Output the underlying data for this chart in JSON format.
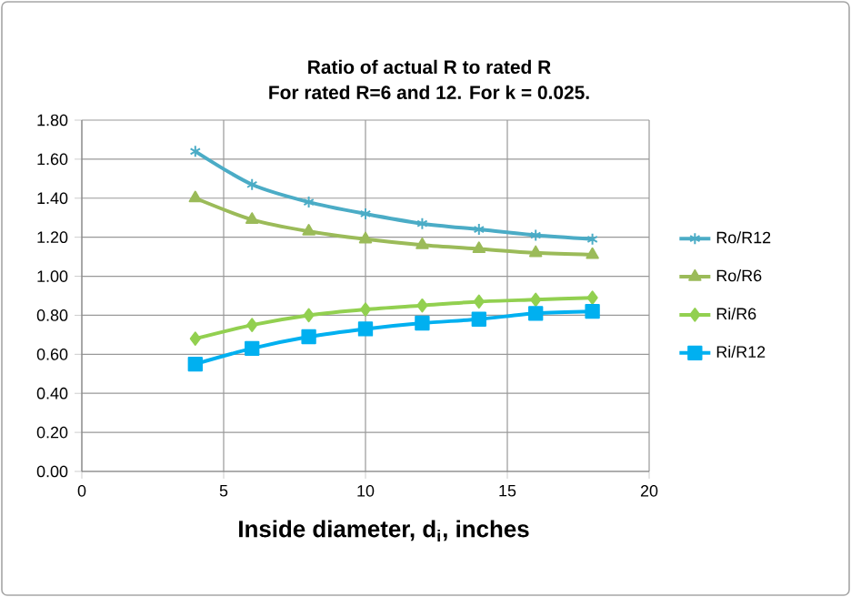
{
  "chart_data": {
    "type": "line",
    "title": "Ratio of actual R to rated R",
    "subtitle": "For rated R=6 and 12. For k = 0.025.",
    "xlabel": "Inside diameter, d$_{i}$, inches",
    "x": [
      4,
      6,
      8,
      10,
      12,
      14,
      16,
      18
    ],
    "series": [
      {
        "name": "Ro/R12",
        "color": "#4bacc6",
        "marker": "cross",
        "values": [
          1.64,
          1.47,
          1.38,
          1.32,
          1.27,
          1.24,
          1.21,
          1.19
        ]
      },
      {
        "name": "Ro/R6",
        "color": "#9bbb59",
        "marker": "triangle",
        "values": [
          1.4,
          1.29,
          1.23,
          1.19,
          1.16,
          1.14,
          1.12,
          1.11
        ]
      },
      {
        "name": "Ri/R6",
        "color": "#92d050",
        "marker": "diamond",
        "values": [
          0.68,
          0.75,
          0.8,
          0.83,
          0.85,
          0.87,
          0.88,
          0.89
        ]
      },
      {
        "name": "Ri/R12",
        "color": "#00b0f0",
        "marker": "square",
        "values": [
          0.55,
          0.63,
          0.69,
          0.73,
          0.76,
          0.78,
          0.81,
          0.82
        ]
      }
    ],
    "xlim": [
      0,
      20
    ],
    "xticks": [
      0,
      5,
      10,
      15,
      20
    ],
    "ylim": [
      0,
      1.8
    ],
    "yticks": [
      {
        "value": 0,
        "label": "0.00"
      },
      {
        "value": 0.2,
        "label": "0.20"
      },
      {
        "value": 0.4,
        "label": "0.40"
      },
      {
        "value": 0.6,
        "label": "0.60"
      },
      {
        "value": 0.8,
        "label": "0.80"
      },
      {
        "value": 1.0,
        "label": "1.00"
      },
      {
        "value": 1.2,
        "label": "1.20"
      },
      {
        "value": 1.4,
        "label": "1.40"
      },
      {
        "value": 1.6,
        "label": "1.60"
      },
      {
        "value": 1.8,
        "label": "1.80"
      }
    ],
    "grid": true,
    "legend": "right",
    "line_style": "solid"
  }
}
